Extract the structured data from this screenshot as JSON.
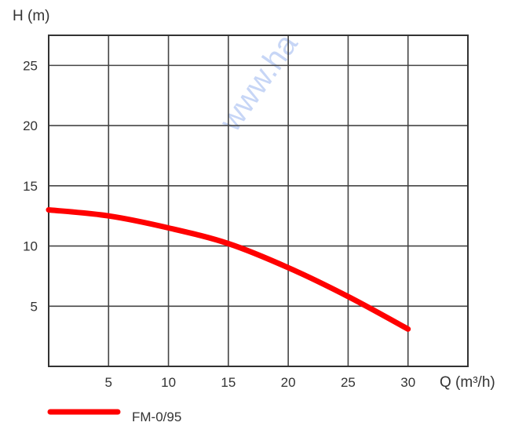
{
  "chart_data": {
    "type": "line",
    "title": "",
    "xlabel": "Q (m³/h)",
    "ylabel": "H (m)",
    "xlim": [
      0,
      35
    ],
    "ylim": [
      0,
      27.5
    ],
    "x_ticks": [
      5,
      10,
      15,
      20,
      25,
      30
    ],
    "y_ticks": [
      5,
      10,
      15,
      20,
      25
    ],
    "x_grid": [
      0,
      5,
      10,
      15,
      20,
      25,
      30,
      35
    ],
    "y_grid": [
      0,
      5,
      10,
      15,
      20,
      25,
      27.5
    ],
    "grid": true,
    "legend_position": "bottom-left",
    "series": [
      {
        "name": "FM-0/95",
        "color": "#ff0000",
        "x": [
          0,
          5,
          10,
          15,
          20,
          25,
          30
        ],
        "y": [
          13.0,
          12.5,
          11.5,
          10.2,
          8.2,
          5.8,
          3.1
        ]
      }
    ]
  },
  "watermark": {
    "text": "www.ha"
  }
}
